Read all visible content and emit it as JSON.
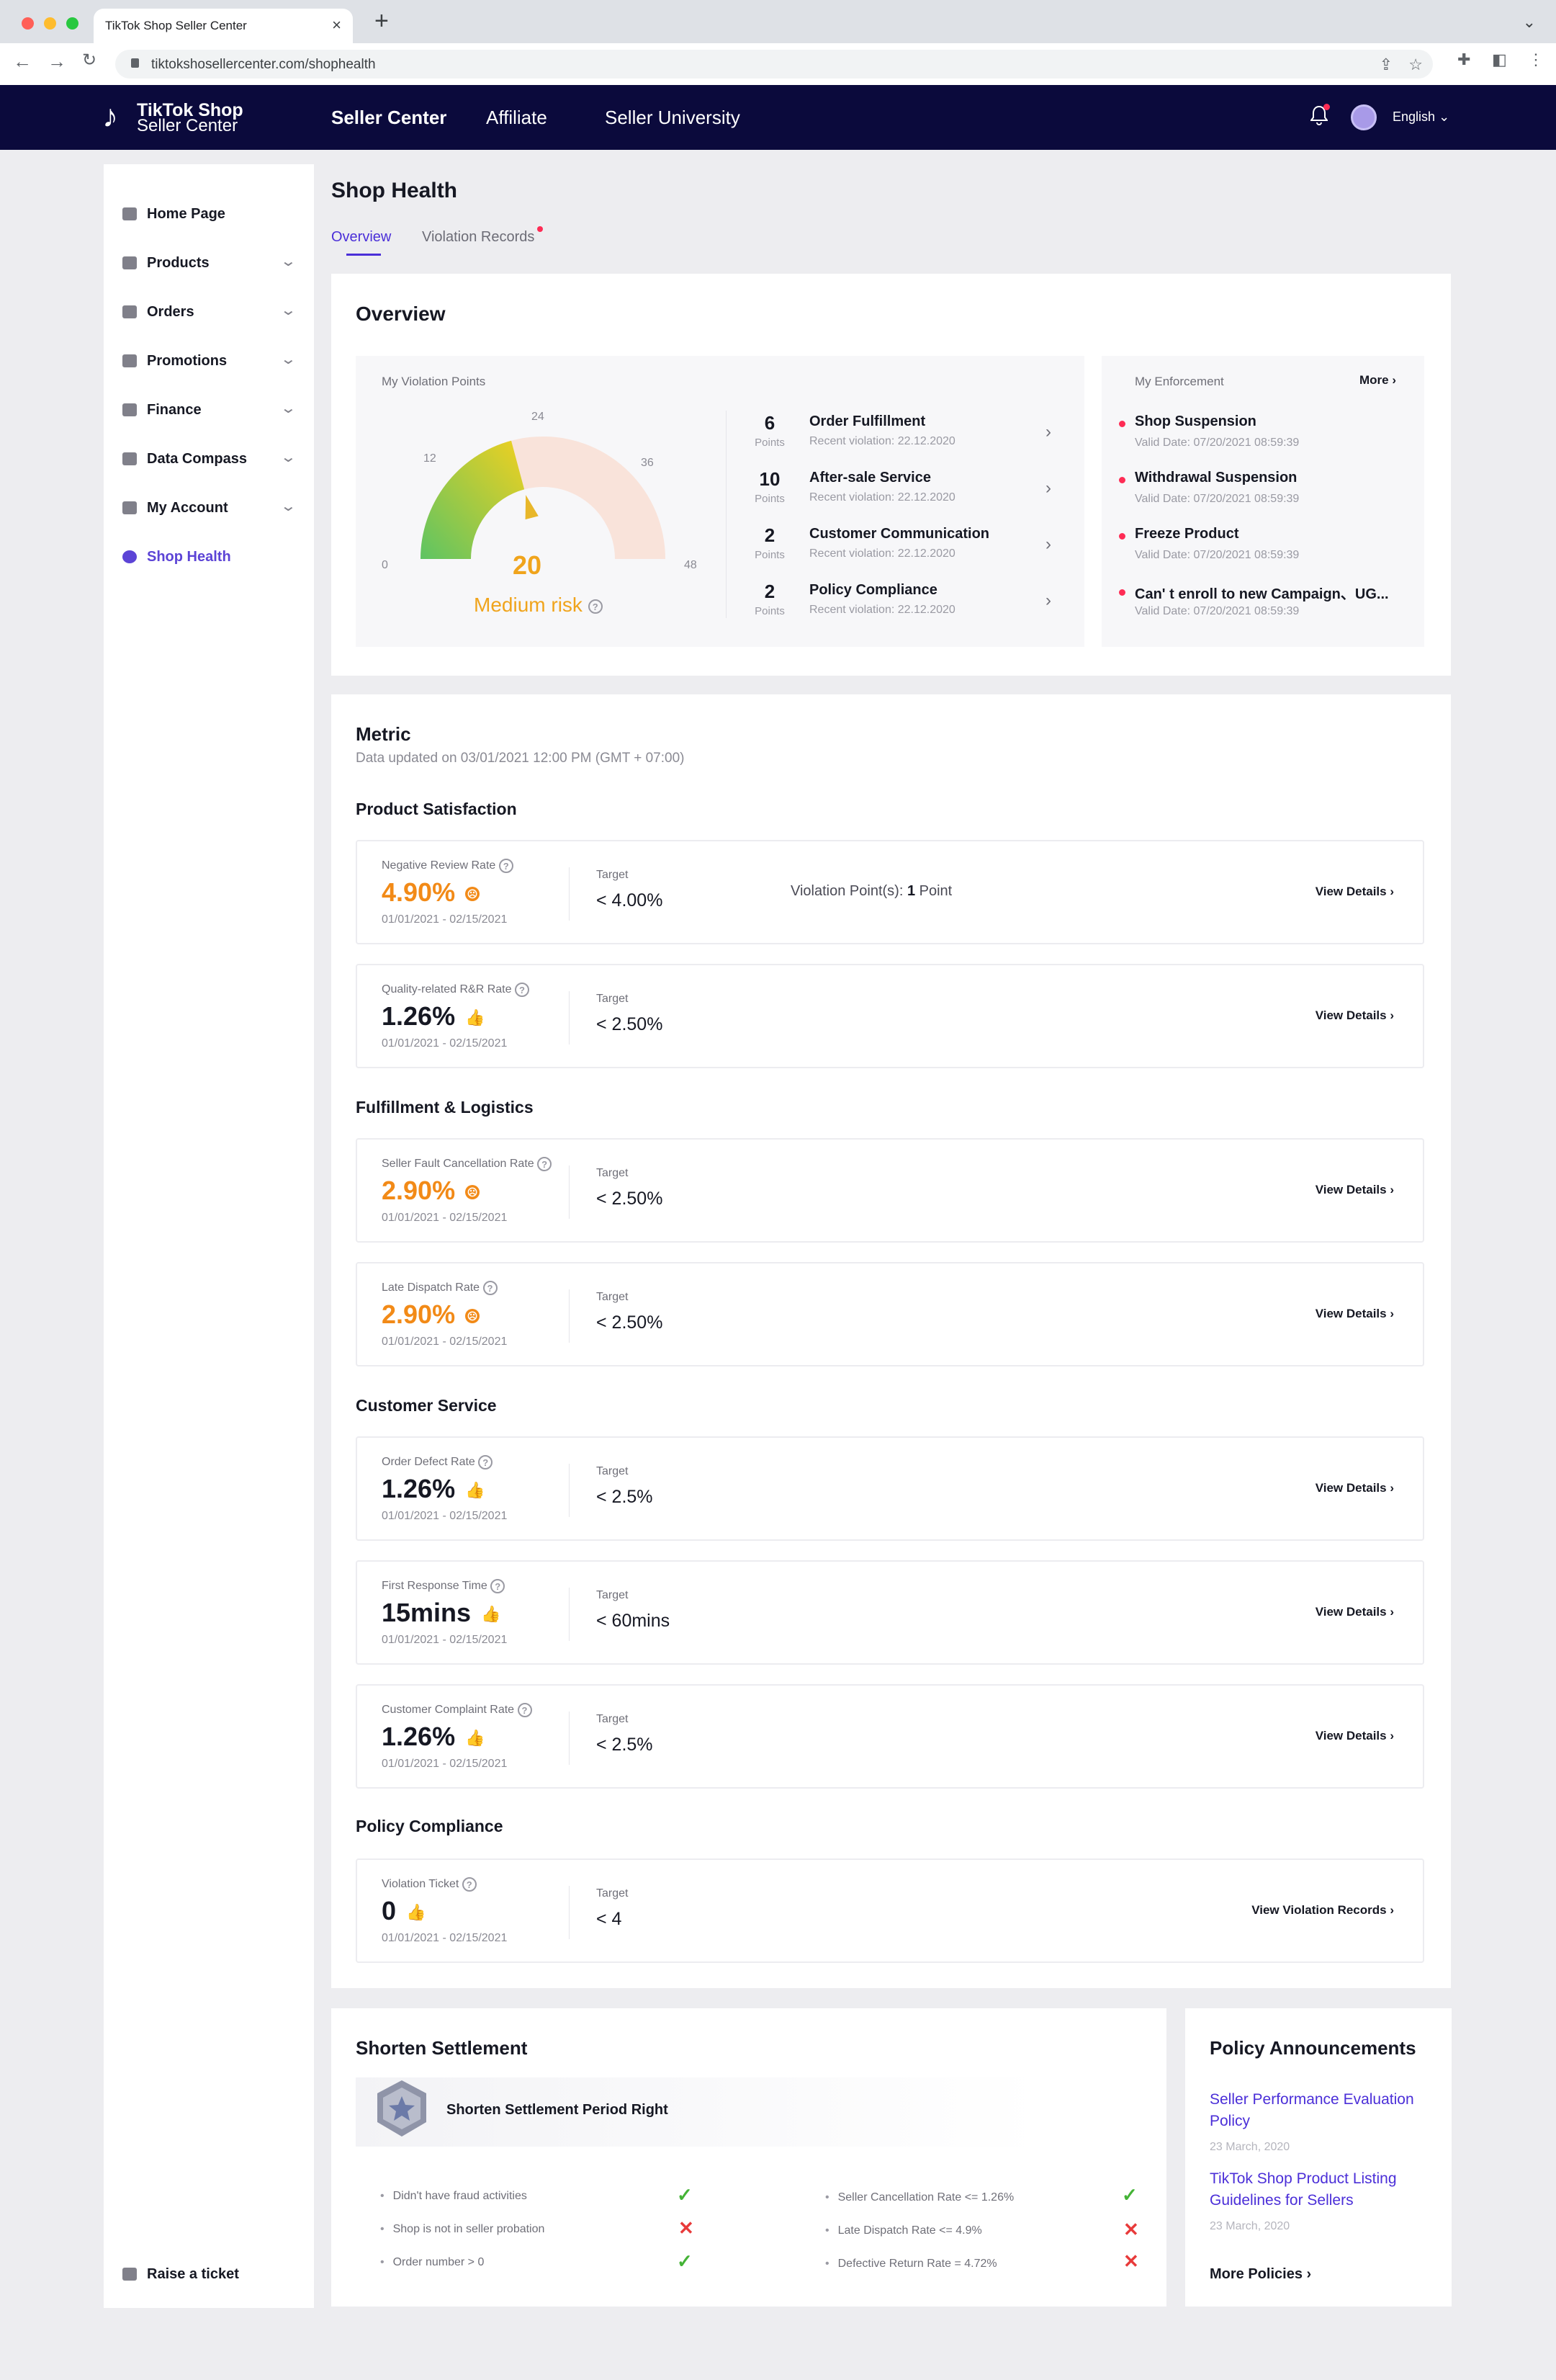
{
  "browser": {
    "tab_title": "TikTok Shop Seller Center",
    "url": "tiktokshosellercenter.com/shophealth"
  },
  "header": {
    "logo_line1": "TikTok Shop",
    "logo_line2": "Seller Center",
    "nav": [
      "Seller Center",
      "Affiliate",
      "Seller University"
    ],
    "language": "English"
  },
  "sidebar": {
    "items": [
      {
        "label": "Home Page"
      },
      {
        "label": "Products"
      },
      {
        "label": "Orders"
      },
      {
        "label": "Promotions"
      },
      {
        "label": "Finance"
      },
      {
        "label": "Data Compass"
      },
      {
        "label": "My Account"
      },
      {
        "label": "Shop Health"
      }
    ],
    "raise_ticket": "Raise a ticket"
  },
  "page": {
    "title": "Shop Health",
    "tabs": [
      "Overview",
      "Violation Records"
    ]
  },
  "overview": {
    "title": "Overview",
    "violation_points_label": "My Violation Points",
    "gauge": {
      "ticks": [
        "0",
        "12",
        "24",
        "36",
        "48"
      ],
      "value": "20",
      "risk": "Medium risk",
      "value_fraction": 0.4167,
      "colors": {
        "green": "#5dc463",
        "yellow": "#f0d020",
        "track": "#f8e4d8"
      }
    },
    "violations": [
      {
        "points": "6",
        "unit": "Points",
        "name": "Order Fulfillment",
        "date": "Recent violation: 22.12.2020"
      },
      {
        "points": "10",
        "unit": "Points",
        "name": "After-sale Service",
        "date": "Recent violation: 22.12.2020"
      },
      {
        "points": "2",
        "unit": "Points",
        "name": "Customer Communication",
        "date": "Recent violation: 22.12.2020"
      },
      {
        "points": "2",
        "unit": "Points",
        "name": "Policy Compliance",
        "date": "Recent violation: 22.12.2020"
      }
    ],
    "enforcement_label": "My Enforcement",
    "more": "More",
    "enforcements": [
      {
        "name": "Shop Suspension",
        "date": "Valid Date: 07/20/2021 08:59:39"
      },
      {
        "name": "Withdrawal Suspension",
        "date": "Valid Date: 07/20/2021 08:59:39"
      },
      {
        "name": "Freeze Product",
        "date": "Valid Date: 07/20/2021 08:59:39"
      },
      {
        "name": "Can' t enroll to new Campaign、UG...",
        "date": "Valid Date: 07/20/2021 08:59:39"
      }
    ]
  },
  "metric": {
    "title": "Metric",
    "updated": "Data updated on 03/01/2021 12:00 PM (GMT + 07:00)",
    "target_label": "Target",
    "groups": [
      "Product Satisfaction",
      "Fulfillment & Logistics",
      "Customer Service",
      "Policy Compliance"
    ],
    "items": [
      {
        "label": "Negative Review Rate",
        "value": "4.90%",
        "status": "bad",
        "date": "01/01/2021 - 02/15/2021",
        "target": "< 4.00%",
        "violation_prefix": "Violation Point(s):",
        "violation_value": "1",
        "violation_suffix": "Point",
        "action": "View Details"
      },
      {
        "label": "Quality-related R&R Rate",
        "value": "1.26%",
        "status": "good",
        "date": "01/01/2021 - 02/15/2021",
        "target": "< 2.50%",
        "action": "View Details"
      },
      {
        "label": "Seller Fault Cancellation Rate",
        "value": "2.90%",
        "status": "bad",
        "date": "01/01/2021 - 02/15/2021",
        "target": "< 2.50%",
        "action": "View Details"
      },
      {
        "label": "Late Dispatch Rate",
        "value": "2.90%",
        "status": "bad",
        "date": "01/01/2021 - 02/15/2021",
        "target": "< 2.50%",
        "action": "View Details"
      },
      {
        "label": "Order Defect Rate",
        "value": "1.26%",
        "status": "good",
        "date": "01/01/2021 - 02/15/2021",
        "target": "< 2.5%",
        "action": "View Details"
      },
      {
        "label": "First Response Time",
        "value": "15mins",
        "status": "good",
        "date": "01/01/2021 - 02/15/2021",
        "target": "< 60mins",
        "action": "View Details"
      },
      {
        "label": "Customer Complaint Rate",
        "value": "1.26%",
        "status": "good",
        "date": "01/01/2021 - 02/15/2021",
        "target": "< 2.5%",
        "action": "View Details"
      },
      {
        "label": "Violation Ticket",
        "value": "0",
        "status": "good",
        "date": "01/01/2021 - 02/15/2021",
        "target": "< 4",
        "action": "View Violation Records"
      }
    ]
  },
  "settlement": {
    "title": "Shorten Settlement",
    "right": "Shorten Settlement Period Right",
    "requirements_left": [
      {
        "text": "Didn't have fraud activities",
        "met": true
      },
      {
        "text": "Shop is not in seller probation",
        "met": false
      },
      {
        "text": "Order number > 0",
        "met": true
      }
    ],
    "requirements_right": [
      {
        "text": "Seller Cancellation Rate <= 1.26%",
        "met": true
      },
      {
        "text": "Late Dispatch Rate <= 4.9%",
        "met": false
      },
      {
        "text": "Defective Return Rate = 4.72%",
        "met": false
      }
    ]
  },
  "announcements": {
    "title": "Policy Announcements",
    "items": [
      {
        "title": "Seller Performance Evaluation Policy",
        "date": "23 March, 2020"
      },
      {
        "title": "TikTok Shop Product Listing Guidelines for Sellers",
        "date": "23 March, 2020"
      }
    ],
    "more": "More Policies"
  }
}
